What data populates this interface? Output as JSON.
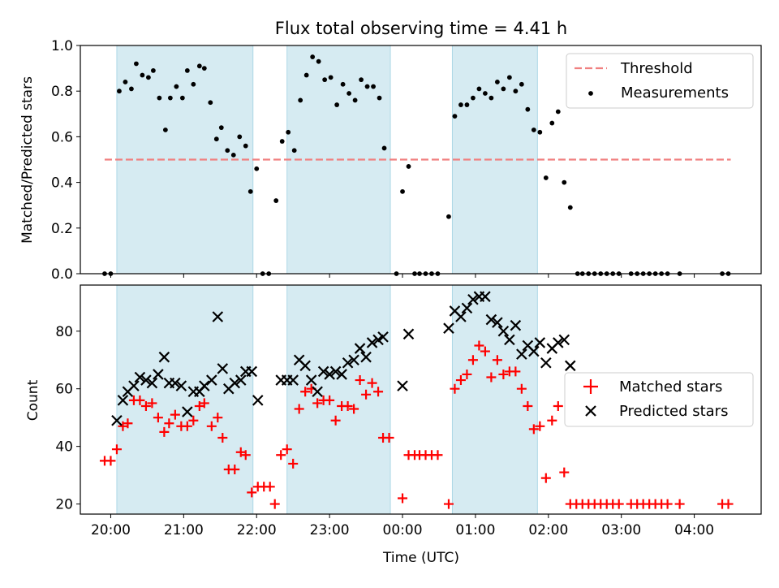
{
  "chart_data": [
    {
      "type": "scatter",
      "title": "Flux total observing time = 4.41 h",
      "xlabel": "",
      "ylabel": "Matched/Predicted stars",
      "xlim": [
        "19:35",
        "04:55"
      ],
      "ylim": [
        0,
        1.0
      ],
      "yticks": [
        "0.0",
        "0.2",
        "0.4",
        "0.6",
        "0.8",
        "1.0"
      ],
      "grid": false,
      "legend_position": "top-right",
      "shaded_periods": [
        [
          "20:05",
          "21:57"
        ],
        [
          "22:25",
          "23:50"
        ],
        [
          "00:41",
          "01:51"
        ]
      ],
      "threshold": {
        "label": "Threshold",
        "value": 0.5,
        "x_range": [
          "19:55",
          "04:30"
        ],
        "color": "#f08080"
      },
      "series": [
        {
          "name": "Measurements",
          "color": "#000000",
          "points": [
            [
              "19:55",
              0
            ],
            [
              "20:00",
              0
            ],
            [
              "20:07",
              0.8
            ],
            [
              "20:12",
              0.84
            ],
            [
              "20:17",
              0.81
            ],
            [
              "20:21",
              0.92
            ],
            [
              "20:26",
              0.87
            ],
            [
              "20:31",
              0.86
            ],
            [
              "20:35",
              0.89
            ],
            [
              "20:40",
              0.77
            ],
            [
              "20:45",
              0.63
            ],
            [
              "20:49",
              0.77
            ],
            [
              "20:54",
              0.82
            ],
            [
              "20:59",
              0.77
            ],
            [
              "21:03",
              0.89
            ],
            [
              "21:08",
              0.83
            ],
            [
              "21:13",
              0.91
            ],
            [
              "21:17",
              0.9
            ],
            [
              "21:22",
              0.75
            ],
            [
              "21:27",
              0.59
            ],
            [
              "21:31",
              0.64
            ],
            [
              "21:36",
              0.54
            ],
            [
              "21:41",
              0.52
            ],
            [
              "21:46",
              0.6
            ],
            [
              "21:51",
              0.56
            ],
            [
              "21:55",
              0.36
            ],
            [
              "22:00",
              0.46
            ],
            [
              "22:05",
              0
            ],
            [
              "22:10",
              0
            ],
            [
              "22:16",
              0.32
            ],
            [
              "22:21",
              0.58
            ],
            [
              "22:26",
              0.62
            ],
            [
              "22:31",
              0.54
            ],
            [
              "22:36",
              0.76
            ],
            [
              "22:41",
              0.87
            ],
            [
              "22:46",
              0.95
            ],
            [
              "22:51",
              0.93
            ],
            [
              "22:56",
              0.85
            ],
            [
              "23:01",
              0.86
            ],
            [
              "23:06",
              0.74
            ],
            [
              "23:11",
              0.83
            ],
            [
              "23:16",
              0.79
            ],
            [
              "23:21",
              0.76
            ],
            [
              "23:26",
              0.85
            ],
            [
              "23:31",
              0.82
            ],
            [
              "23:36",
              0.82
            ],
            [
              "23:41",
              0.77
            ],
            [
              "23:45",
              0.55
            ],
            [
              "23:55",
              0
            ],
            [
              "00:00",
              0.36
            ],
            [
              "00:05",
              0.47
            ],
            [
              "00:10",
              0
            ],
            [
              "00:14",
              0
            ],
            [
              "00:19",
              0
            ],
            [
              "00:24",
              0
            ],
            [
              "00:29",
              0
            ],
            [
              "00:38",
              0.25
            ],
            [
              "00:43",
              0.69
            ],
            [
              "00:48",
              0.74
            ],
            [
              "00:53",
              0.74
            ],
            [
              "00:58",
              0.77
            ],
            [
              "01:03",
              0.81
            ],
            [
              "01:08",
              0.79
            ],
            [
              "01:13",
              0.77
            ],
            [
              "01:18",
              0.84
            ],
            [
              "01:23",
              0.81
            ],
            [
              "01:28",
              0.86
            ],
            [
              "01:33",
              0.8
            ],
            [
              "01:38",
              0.83
            ],
            [
              "01:43",
              0.72
            ],
            [
              "01:48",
              0.63
            ],
            [
              "01:53",
              0.62
            ],
            [
              "01:58",
              0.42
            ],
            [
              "02:03",
              0.66
            ],
            [
              "02:08",
              0.71
            ],
            [
              "02:13",
              0.4
            ],
            [
              "02:18",
              0.29
            ],
            [
              "02:24",
              0
            ],
            [
              "02:28",
              0
            ],
            [
              "02:33",
              0
            ],
            [
              "02:38",
              0
            ],
            [
              "02:43",
              0
            ],
            [
              "02:48",
              0
            ],
            [
              "02:53",
              0
            ],
            [
              "02:58",
              0
            ],
            [
              "03:08",
              0
            ],
            [
              "03:13",
              0
            ],
            [
              "03:18",
              0
            ],
            [
              "03:23",
              0
            ],
            [
              "03:28",
              0
            ],
            [
              "03:33",
              0
            ],
            [
              "03:38",
              0
            ],
            [
              "03:48",
              0
            ],
            [
              "04:23",
              0
            ],
            [
              "04:28",
              0
            ]
          ]
        }
      ]
    },
    {
      "type": "scatter",
      "title": "",
      "xlabel": "Time (UTC)",
      "ylabel": "Count",
      "xlim": [
        "19:35",
        "04:55"
      ],
      "ylim": [
        16.5,
        96
      ],
      "yticks": [
        "20",
        "40",
        "60",
        "80"
      ],
      "xticks": [
        "20:00",
        "21:00",
        "22:00",
        "23:00",
        "00:00",
        "01:00",
        "02:00",
        "03:00",
        "04:00"
      ],
      "grid": false,
      "legend_position": "center-right",
      "shaded_periods": [
        [
          "20:05",
          "21:57"
        ],
        [
          "22:25",
          "23:50"
        ],
        [
          "00:41",
          "01:51"
        ]
      ],
      "series": [
        {
          "name": "Matched stars",
          "marker": "plus",
          "color": "#ff0000",
          "points": [
            [
              "19:55",
              35
            ],
            [
              "20:00",
              35
            ],
            [
              "20:05",
              39
            ],
            [
              "20:10",
              47
            ],
            [
              "20:14",
              48
            ],
            [
              "20:19",
              56
            ],
            [
              "20:24",
              56
            ],
            [
              "20:29",
              54
            ],
            [
              "20:34",
              55
            ],
            [
              "20:39",
              50
            ],
            [
              "20:44",
              45
            ],
            [
              "20:48",
              48
            ],
            [
              "20:53",
              51
            ],
            [
              "20:58",
              47
            ],
            [
              "21:03",
              47
            ],
            [
              "21:08",
              49
            ],
            [
              "21:13",
              54
            ],
            [
              "21:17",
              55
            ],
            [
              "21:23",
              47
            ],
            [
              "21:28",
              50
            ],
            [
              "21:32",
              43
            ],
            [
              "21:37",
              32
            ],
            [
              "21:42",
              32
            ],
            [
              "21:47",
              38
            ],
            [
              "21:51",
              37
            ],
            [
              "21:56",
              24
            ],
            [
              "22:01",
              26
            ],
            [
              "22:06",
              26
            ],
            [
              "22:11",
              26
            ],
            [
              "22:15",
              20
            ],
            [
              "22:20",
              37
            ],
            [
              "22:25",
              39
            ],
            [
              "22:30",
              34
            ],
            [
              "22:35",
              53
            ],
            [
              "22:40",
              59
            ],
            [
              "22:45",
              60
            ],
            [
              "22:50",
              55
            ],
            [
              "22:55",
              56
            ],
            [
              "23:00",
              56
            ],
            [
              "23:05",
              49
            ],
            [
              "23:10",
              54
            ],
            [
              "23:15",
              54
            ],
            [
              "23:20",
              53
            ],
            [
              "23:25",
              63
            ],
            [
              "23:30",
              58
            ],
            [
              "23:35",
              62
            ],
            [
              "23:40",
              59
            ],
            [
              "23:44",
              43
            ],
            [
              "23:49",
              43
            ],
            [
              "24:00",
              22
            ],
            [
              "24:05",
              37
            ],
            [
              "24:10",
              37
            ],
            [
              "24:14",
              37
            ],
            [
              "24:19",
              37
            ],
            [
              "24:24",
              37
            ],
            [
              "24:29",
              37
            ],
            [
              "24:38",
              20
            ],
            [
              "24:43",
              60
            ],
            [
              "24:48",
              63
            ],
            [
              "24:53",
              65
            ],
            [
              "24:58",
              70
            ],
            [
              "25:03",
              75
            ],
            [
              "25:08",
              73
            ],
            [
              "25:13",
              64
            ],
            [
              "25:18",
              70
            ],
            [
              "25:23",
              65
            ],
            [
              "25:28",
              66
            ],
            [
              "25:33",
              66
            ],
            [
              "25:38",
              60
            ],
            [
              "25:43",
              54
            ],
            [
              "25:48",
              46
            ],
            [
              "25:53",
              47
            ],
            [
              "25:58",
              29
            ],
            [
              "26:03",
              49
            ],
            [
              "26:08",
              54
            ],
            [
              "26:13",
              31
            ],
            [
              "26:18",
              20
            ],
            [
              "26:23",
              20
            ],
            [
              "26:28",
              20
            ],
            [
              "26:33",
              20
            ],
            [
              "26:38",
              20
            ],
            [
              "26:43",
              20
            ],
            [
              "26:48",
              20
            ],
            [
              "26:53",
              20
            ],
            [
              "26:58",
              20
            ],
            [
              "27:08",
              20
            ],
            [
              "27:13",
              20
            ],
            [
              "27:18",
              20
            ],
            [
              "27:23",
              20
            ],
            [
              "27:28",
              20
            ],
            [
              "27:33",
              20
            ],
            [
              "27:38",
              20
            ],
            [
              "27:48",
              20
            ],
            [
              "28:23",
              20
            ],
            [
              "28:28",
              20
            ]
          ]
        },
        {
          "name": "Predicted stars",
          "marker": "x",
          "color": "#000000",
          "points": [
            [
              "20:05",
              49
            ],
            [
              "20:10",
              56
            ],
            [
              "20:14",
              59
            ],
            [
              "20:19",
              61
            ],
            [
              "20:24",
              64
            ],
            [
              "20:29",
              63
            ],
            [
              "20:34",
              62
            ],
            [
              "20:39",
              65
            ],
            [
              "20:44",
              71
            ],
            [
              "20:48",
              62
            ],
            [
              "20:53",
              62
            ],
            [
              "20:58",
              61
            ],
            [
              "21:03",
              52
            ],
            [
              "21:08",
              59
            ],
            [
              "21:13",
              59
            ],
            [
              "21:17",
              61
            ],
            [
              "21:23",
              63
            ],
            [
              "21:28",
              85
            ],
            [
              "21:32",
              67
            ],
            [
              "21:37",
              60
            ],
            [
              "21:42",
              62
            ],
            [
              "21:47",
              63
            ],
            [
              "21:51",
              66
            ],
            [
              "21:56",
              66
            ],
            [
              "22:01",
              56
            ],
            [
              "22:20",
              63
            ],
            [
              "22:25",
              63
            ],
            [
              "22:30",
              63
            ],
            [
              "22:35",
              70
            ],
            [
              "22:40",
              68
            ],
            [
              "22:45",
              63
            ],
            [
              "22:50",
              59
            ],
            [
              "22:55",
              66
            ],
            [
              "23:00",
              65
            ],
            [
              "23:05",
              66
            ],
            [
              "23:10",
              65
            ],
            [
              "23:15",
              69
            ],
            [
              "23:20",
              70
            ],
            [
              "23:25",
              74
            ],
            [
              "23:30",
              71
            ],
            [
              "23:35",
              76
            ],
            [
              "23:40",
              77
            ],
            [
              "23:44",
              78
            ],
            [
              "24:00",
              61
            ],
            [
              "24:05",
              79
            ],
            [
              "24:38",
              81
            ],
            [
              "24:43",
              87
            ],
            [
              "24:48",
              85
            ],
            [
              "24:53",
              88
            ],
            [
              "24:58",
              91
            ],
            [
              "25:03",
              92
            ],
            [
              "25:08",
              92
            ],
            [
              "25:13",
              84
            ],
            [
              "25:18",
              83
            ],
            [
              "25:23",
              80
            ],
            [
              "25:28",
              77
            ],
            [
              "25:33",
              82
            ],
            [
              "25:38",
              72
            ],
            [
              "25:43",
              75
            ],
            [
              "25:48",
              73
            ],
            [
              "25:53",
              76
            ],
            [
              "25:58",
              69
            ],
            [
              "26:03",
              74
            ],
            [
              "26:08",
              76
            ],
            [
              "26:13",
              77
            ],
            [
              "26:18",
              68
            ]
          ]
        }
      ]
    }
  ]
}
